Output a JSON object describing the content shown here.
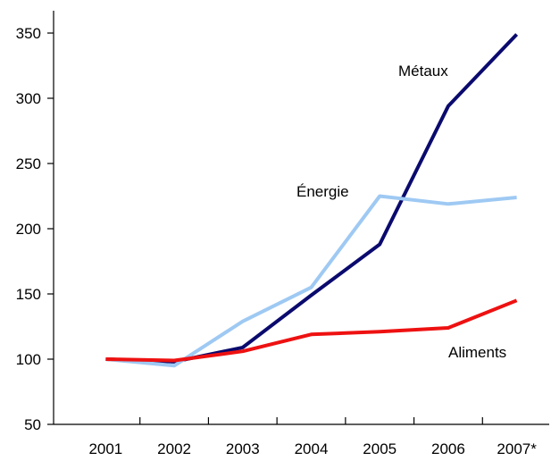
{
  "chart_data": {
    "type": "line",
    "categories": [
      "2001",
      "2002",
      "2003",
      "2004",
      "2005",
      "2006",
      "2007*"
    ],
    "ylim": [
      50,
      350
    ],
    "yticks": [
      50,
      100,
      150,
      200,
      250,
      300,
      350
    ],
    "grid": false,
    "legend": "none",
    "series": [
      {
        "name": "Métaux",
        "color": "#0a0a6e",
        "values": [
          100,
          98,
          109,
          149,
          188,
          294,
          349
        ]
      },
      {
        "name": "Énergie",
        "color": "#9ec9f3",
        "values": [
          100,
          95,
          129,
          155,
          225,
          219,
          224
        ]
      },
      {
        "name": "Aliments",
        "color": "#ee1111",
        "values": [
          100,
          99,
          106,
          119,
          121,
          124,
          145
        ]
      }
    ]
  }
}
